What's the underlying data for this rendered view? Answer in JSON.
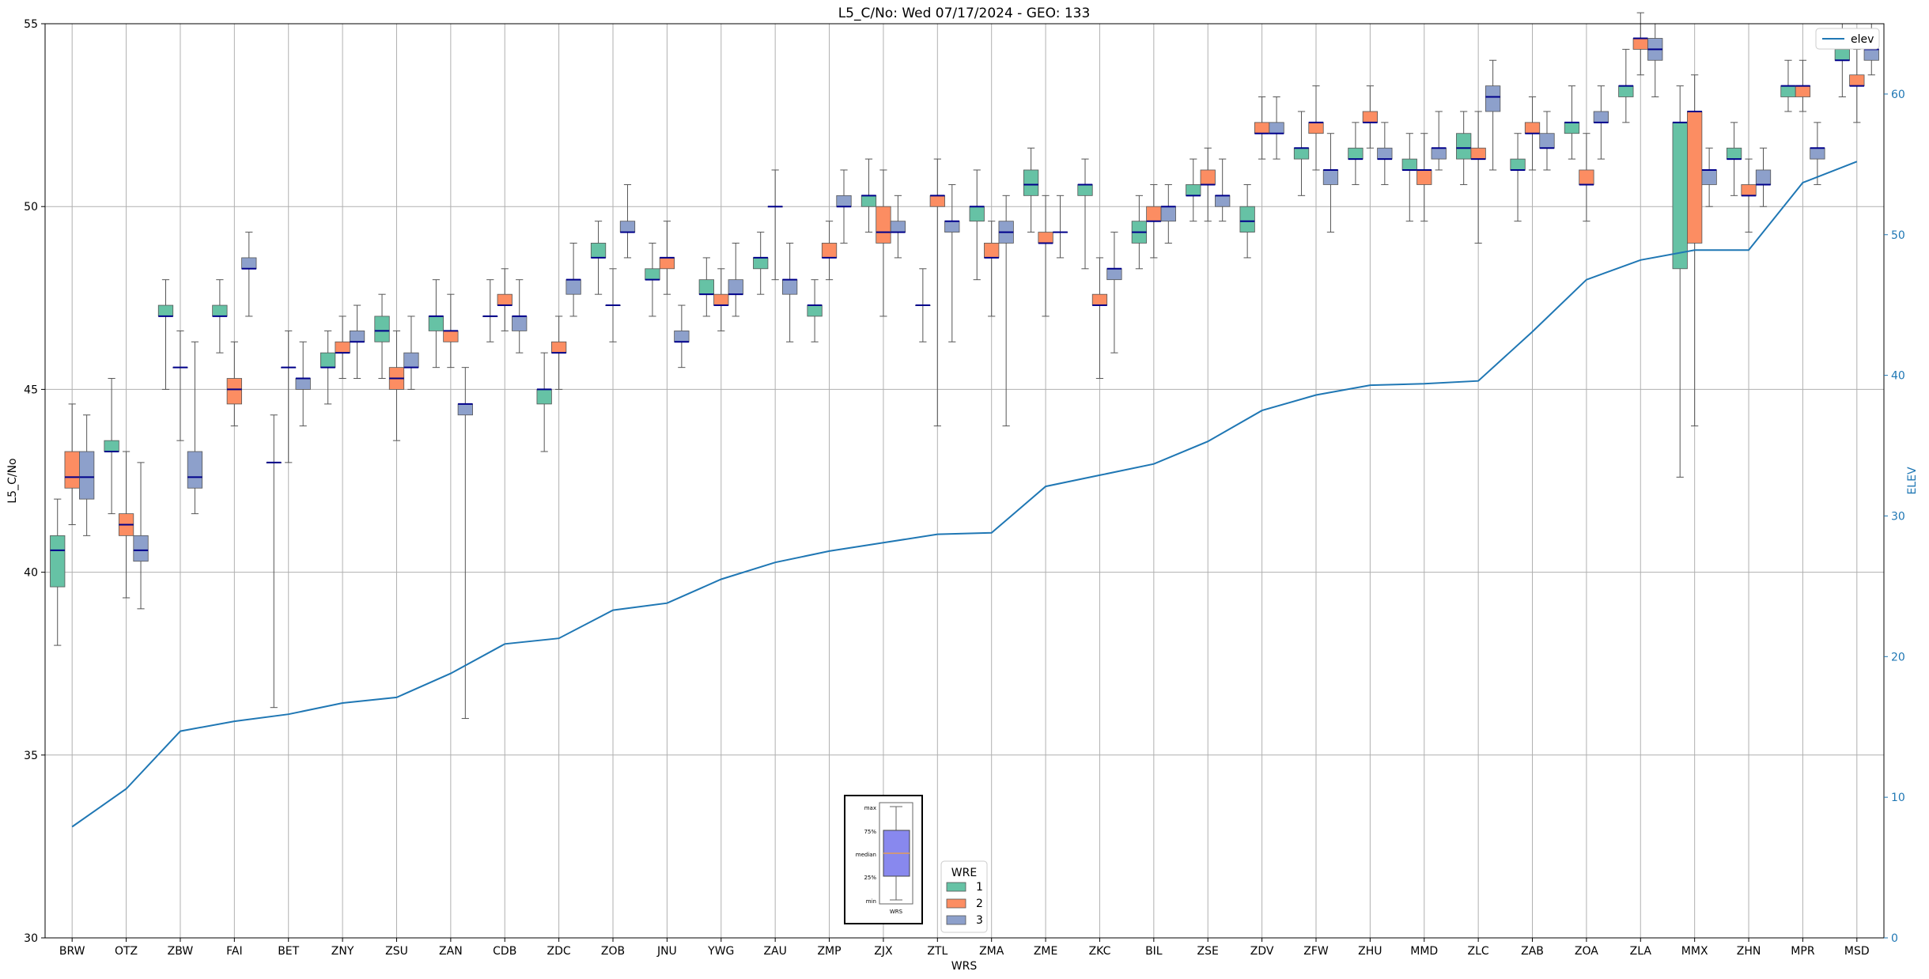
{
  "chart_data": {
    "type": "box",
    "title": "L5_C/No: Wed 07/17/2024 - GEO: 133",
    "xlabel": "WRS",
    "ylabel": "L5_C/No",
    "y2label": "ELEV",
    "ylim": [
      30,
      55
    ],
    "y2lim": [
      0,
      65
    ],
    "yticks": [
      30,
      35,
      40,
      45,
      50,
      55
    ],
    "y2ticks": [
      0,
      10,
      20,
      30,
      40,
      50,
      60
    ],
    "grid": true,
    "categories": [
      "BRW",
      "OTZ",
      "ZBW",
      "FAI",
      "BET",
      "ZNY",
      "ZSU",
      "ZAN",
      "CDB",
      "ZDC",
      "ZOB",
      "JNU",
      "YWG",
      "ZAU",
      "ZMP",
      "ZJX",
      "ZTL",
      "ZMA",
      "ZME",
      "ZKC",
      "BIL",
      "ZSE",
      "ZDV",
      "ZFW",
      "ZHU",
      "MMD",
      "ZLC",
      "ZAB",
      "ZOA",
      "ZLA",
      "MMX",
      "ZHN",
      "MPR",
      "MSD"
    ],
    "series": [
      {
        "name": "1",
        "color": "#66c2a5",
        "boxes": [
          [
            38.0,
            39.6,
            40.6,
            41.0,
            42.0
          ],
          [
            41.6,
            43.3,
            43.3,
            43.6,
            45.3
          ],
          [
            45.0,
            47.0,
            47.0,
            47.3,
            48.0
          ],
          [
            46.0,
            47.0,
            47.0,
            47.3,
            48.0
          ],
          [
            36.3,
            43.0,
            43.0,
            43.0,
            44.3
          ],
          [
            44.6,
            45.6,
            45.6,
            46.0,
            46.6
          ],
          [
            45.3,
            46.3,
            46.6,
            47.0,
            47.6
          ],
          [
            45.6,
            46.6,
            47.0,
            47.0,
            48.0
          ],
          [
            46.3,
            47.0,
            47.0,
            47.0,
            48.0
          ],
          [
            43.3,
            44.6,
            45.0,
            45.0,
            46.0
          ],
          [
            47.6,
            48.6,
            48.6,
            49.0,
            49.6
          ],
          [
            47.0,
            48.0,
            48.0,
            48.3,
            49.0
          ],
          [
            47.0,
            47.6,
            47.6,
            48.0,
            48.6
          ],
          [
            47.6,
            48.3,
            48.6,
            48.6,
            49.3
          ],
          [
            46.3,
            47.0,
            47.3,
            47.3,
            48.0
          ],
          [
            49.3,
            50.0,
            50.3,
            50.3,
            51.3
          ],
          [
            46.3,
            47.3,
            47.3,
            47.3,
            48.3
          ],
          [
            48.0,
            49.6,
            50.0,
            50.0,
            51.0
          ],
          [
            49.3,
            50.3,
            50.6,
            51.0,
            51.6
          ],
          [
            48.3,
            50.3,
            50.6,
            50.6,
            51.3
          ],
          [
            48.3,
            49.0,
            49.3,
            49.6,
            50.3
          ],
          [
            49.6,
            50.3,
            50.3,
            50.6,
            51.3
          ],
          [
            48.6,
            49.3,
            49.6,
            50.0,
            50.6
          ],
          [
            50.3,
            51.3,
            51.6,
            51.6,
            52.6
          ],
          [
            50.6,
            51.3,
            51.3,
            51.6,
            52.3
          ],
          [
            49.6,
            51.0,
            51.0,
            51.3,
            52.0
          ],
          [
            50.6,
            51.3,
            51.6,
            52.0,
            52.6
          ],
          [
            49.6,
            51.0,
            51.0,
            51.3,
            52.0
          ],
          [
            51.3,
            52.0,
            52.3,
            52.3,
            53.3
          ],
          [
            52.3,
            53.0,
            53.3,
            53.3,
            54.3
          ],
          [
            42.6,
            48.3,
            52.3,
            52.3,
            53.3
          ],
          [
            50.3,
            51.3,
            51.3,
            51.6,
            52.3
          ],
          [
            52.6,
            53.0,
            53.3,
            53.3,
            54.0
          ],
          [
            53.0,
            54.0,
            54.0,
            54.3,
            55.0
          ]
        ]
      },
      {
        "name": "2",
        "color": "#fc8d62",
        "boxes": [
          [
            41.3,
            42.3,
            42.6,
            43.3,
            44.6
          ],
          [
            39.3,
            41.0,
            41.3,
            41.6,
            43.3
          ],
          [
            43.6,
            45.6,
            45.6,
            45.6,
            46.6
          ],
          [
            44.0,
            44.6,
            45.0,
            45.3,
            46.3
          ],
          [
            43.0,
            45.6,
            45.6,
            45.6,
            46.6
          ],
          [
            45.3,
            46.0,
            46.0,
            46.3,
            47.0
          ],
          [
            43.6,
            45.0,
            45.3,
            45.6,
            46.6
          ],
          [
            45.6,
            46.3,
            46.6,
            46.6,
            47.6
          ],
          [
            46.6,
            47.3,
            47.3,
            47.6,
            48.3
          ],
          [
            45.0,
            46.0,
            46.0,
            46.3,
            47.0
          ],
          [
            46.3,
            47.3,
            47.3,
            47.3,
            48.3
          ],
          [
            47.6,
            48.3,
            48.6,
            48.6,
            49.6
          ],
          [
            46.6,
            47.3,
            47.3,
            47.6,
            48.3
          ],
          [
            48.0,
            50.0,
            50.0,
            50.0,
            51.0
          ],
          [
            48.0,
            48.6,
            48.6,
            49.0,
            49.6
          ],
          [
            47.0,
            49.0,
            49.3,
            50.0,
            51.0
          ],
          [
            44.0,
            50.0,
            50.3,
            50.3,
            51.3
          ],
          [
            47.0,
            48.6,
            48.6,
            49.0,
            49.6
          ],
          [
            47.0,
            49.0,
            49.0,
            49.3,
            50.3
          ],
          [
            45.3,
            47.3,
            47.3,
            47.6,
            48.6
          ],
          [
            48.6,
            49.6,
            49.6,
            50.0,
            50.6
          ],
          [
            49.6,
            50.6,
            50.6,
            51.0,
            51.6
          ],
          [
            51.3,
            52.0,
            52.0,
            52.3,
            53.0
          ],
          [
            51.0,
            52.0,
            52.3,
            52.3,
            53.3
          ],
          [
            51.6,
            52.3,
            52.3,
            52.6,
            53.3
          ],
          [
            49.6,
            50.6,
            51.0,
            51.0,
            52.0
          ],
          [
            49.0,
            51.3,
            51.3,
            51.6,
            52.6
          ],
          [
            51.0,
            52.0,
            52.0,
            52.3,
            53.0
          ],
          [
            49.6,
            50.6,
            50.6,
            51.0,
            52.0
          ],
          [
            53.6,
            54.3,
            54.6,
            54.6,
            55.3
          ],
          [
            44.0,
            49.0,
            52.6,
            52.6,
            53.6
          ],
          [
            49.3,
            50.3,
            50.3,
            50.6,
            51.3
          ],
          [
            52.6,
            53.0,
            53.3,
            53.3,
            54.0
          ],
          [
            52.3,
            53.3,
            53.3,
            53.6,
            54.3
          ]
        ]
      },
      {
        "name": "3",
        "color": "#8da0cb",
        "boxes": [
          [
            41.0,
            42.0,
            42.6,
            43.3,
            44.3
          ],
          [
            39.0,
            40.3,
            40.6,
            41.0,
            43.0
          ],
          [
            41.6,
            42.3,
            42.6,
            43.3,
            46.3
          ],
          [
            47.0,
            48.3,
            48.3,
            48.6,
            49.3
          ],
          [
            44.0,
            45.0,
            45.3,
            45.3,
            46.3
          ],
          [
            45.3,
            46.3,
            46.3,
            46.6,
            47.3
          ],
          [
            45.0,
            45.6,
            45.6,
            46.0,
            47.0
          ],
          [
            36.0,
            44.3,
            44.6,
            44.6,
            45.6
          ],
          [
            46.0,
            46.6,
            47.0,
            47.0,
            48.0
          ],
          [
            47.0,
            47.6,
            48.0,
            48.0,
            49.0
          ],
          [
            48.6,
            49.3,
            49.3,
            49.6,
            50.6
          ],
          [
            45.6,
            46.3,
            46.3,
            46.6,
            47.3
          ],
          [
            47.0,
            47.6,
            47.6,
            48.0,
            49.0
          ],
          [
            46.3,
            47.6,
            48.0,
            48.0,
            49.0
          ],
          [
            49.0,
            50.0,
            50.0,
            50.3,
            51.0
          ],
          [
            48.6,
            49.3,
            49.3,
            49.6,
            50.3
          ],
          [
            46.3,
            49.3,
            49.6,
            49.6,
            50.6
          ],
          [
            44.0,
            49.0,
            49.3,
            49.6,
            50.3
          ],
          [
            48.6,
            49.3,
            49.3,
            49.3,
            50.3
          ],
          [
            46.0,
            48.0,
            48.3,
            48.3,
            49.3
          ],
          [
            49.0,
            49.6,
            50.0,
            50.0,
            50.6
          ],
          [
            49.6,
            50.0,
            50.3,
            50.3,
            51.3
          ],
          [
            51.3,
            52.0,
            52.0,
            52.3,
            53.0
          ],
          [
            49.3,
            50.6,
            51.0,
            51.0,
            52.0
          ],
          [
            50.6,
            51.3,
            51.3,
            51.6,
            52.3
          ],
          [
            51.0,
            51.3,
            51.6,
            51.6,
            52.6
          ],
          [
            51.0,
            52.6,
            53.0,
            53.3,
            54.0
          ],
          [
            51.0,
            51.6,
            51.6,
            52.0,
            52.6
          ],
          [
            51.3,
            52.3,
            52.3,
            52.6,
            53.3
          ],
          [
            53.0,
            54.0,
            54.3,
            54.6,
            55.0
          ],
          [
            50.0,
            50.6,
            51.0,
            51.0,
            51.6
          ],
          [
            50.0,
            50.6,
            50.6,
            51.0,
            51.6
          ],
          [
            50.6,
            51.3,
            51.6,
            51.6,
            52.3
          ],
          [
            53.6,
            54.0,
            54.3,
            54.3,
            55.0
          ]
        ]
      }
    ],
    "elev_series": {
      "name": "elev",
      "color": "#1f77b4",
      "values": [
        7.9,
        10.6,
        14.7,
        15.4,
        15.9,
        16.7,
        17.1,
        18.8,
        20.9,
        21.3,
        23.3,
        23.8,
        25.5,
        26.7,
        27.5,
        28.1,
        28.7,
        28.8,
        32.1,
        32.9,
        33.7,
        35.3,
        37.5,
        38.6,
        39.3,
        39.4,
        39.6,
        43.1,
        46.8,
        48.2,
        48.9,
        48.9,
        53.7,
        55.2
      ]
    },
    "legend": {
      "title": "WRE",
      "entries": [
        "1",
        "2",
        "3"
      ],
      "placement": "bottom-center"
    },
    "legend2": {
      "entries": [
        "elev"
      ],
      "placement": "top-right"
    },
    "inset_key": {
      "labels": [
        "max",
        "75%",
        "median",
        "25%",
        "min"
      ],
      "xlabel": "WRS"
    }
  }
}
